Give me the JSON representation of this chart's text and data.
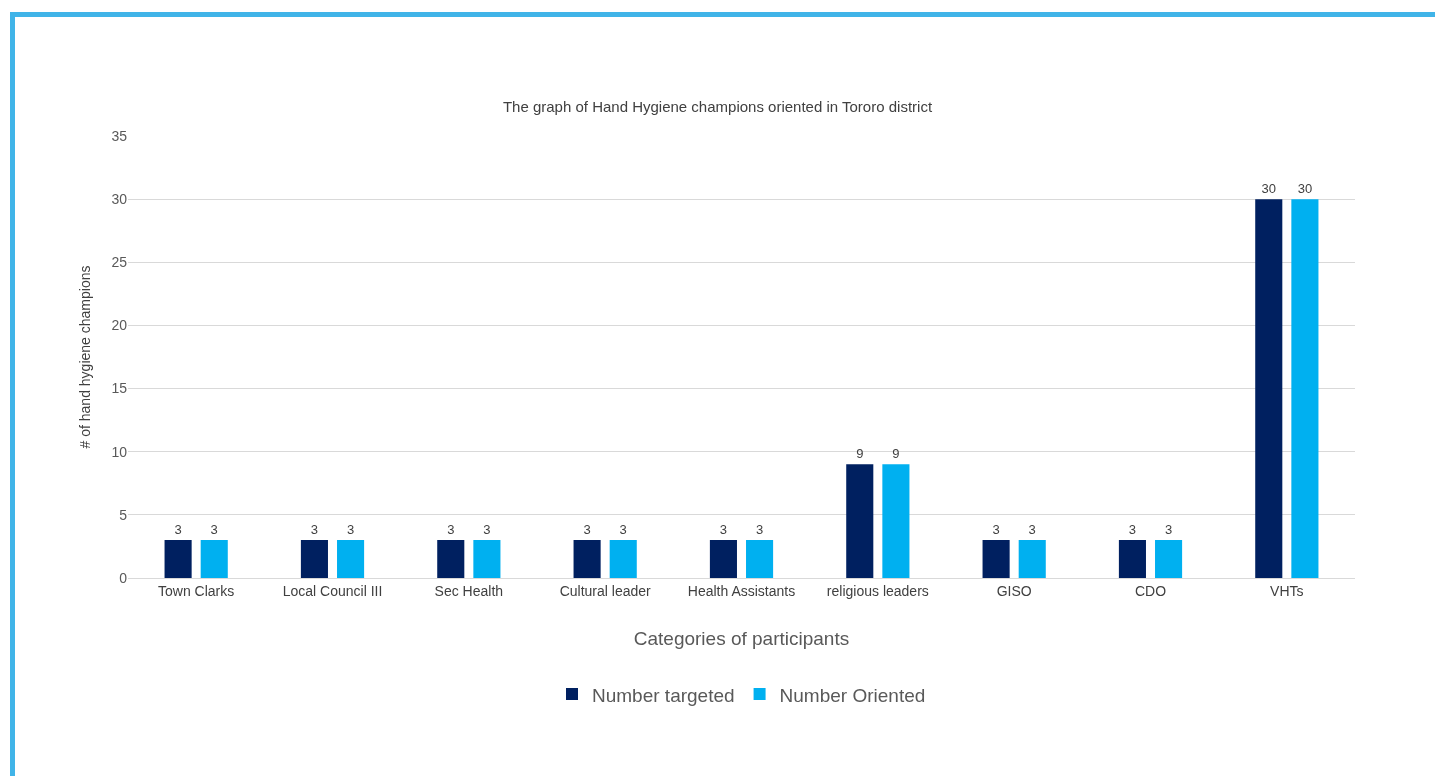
{
  "chart_data": {
    "type": "bar",
    "title": "The graph of Hand Hygiene champions oriented in Tororo district",
    "xlabel": "Categories of participants",
    "ylabel": "# of hand hygiene champions",
    "categories": [
      "Town Clarks",
      "Local Council III",
      "Sec Health",
      "Cultural leader",
      "Health Assistants",
      "religious leaders",
      "GISO",
      "CDO",
      "VHTs"
    ],
    "series": [
      {
        "name": "Number targeted",
        "color": "#002060",
        "values": [
          3,
          3,
          3,
          3,
          3,
          9,
          3,
          3,
          30
        ]
      },
      {
        "name": "Number Oriented",
        "color": "#00b0f0",
        "values": [
          3,
          3,
          3,
          3,
          3,
          9,
          3,
          3,
          30
        ]
      }
    ],
    "ylim": [
      0,
      35
    ],
    "yticks": [
      0,
      5,
      10,
      15,
      20,
      25,
      30,
      35
    ],
    "grid": "y",
    "legend": "bottom",
    "data_labels": true
  }
}
